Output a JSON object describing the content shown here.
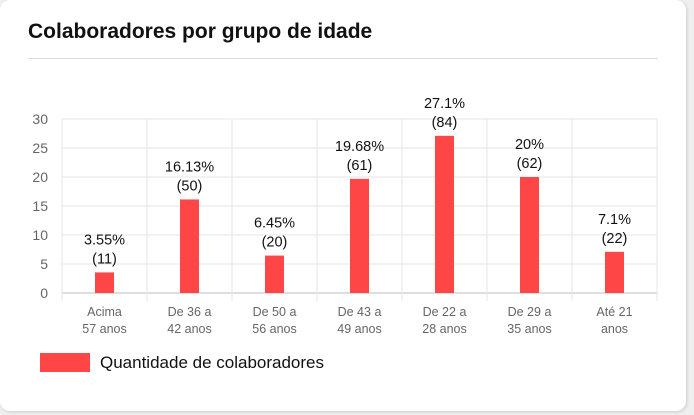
{
  "card": {
    "title": "Colaboradores por grupo de idade"
  },
  "chart_data": {
    "type": "bar",
    "title": "Colaboradores por grupo de idade",
    "xlabel": "",
    "ylabel": "",
    "ylim": [
      0,
      30
    ],
    "yticks": [
      0,
      5,
      10,
      15,
      20,
      25,
      30
    ],
    "grid": true,
    "legend_position": "bottom-left",
    "categories": [
      [
        "Acima",
        "57 anos"
      ],
      [
        "De 36 a",
        "42 anos"
      ],
      [
        "De 50 a",
        "56 anos"
      ],
      [
        "De 43 a",
        "49 anos"
      ],
      [
        "De 22 a",
        "28 anos"
      ],
      [
        "De 29 a",
        "35 anos"
      ],
      [
        "Até 21",
        "anos"
      ]
    ],
    "series": [
      {
        "name": "Quantidade de colaboradores",
        "color": "#ff4646",
        "values": [
          3.55,
          16.13,
          6.45,
          19.68,
          27.1,
          20,
          7.1
        ],
        "labels": [
          [
            "3.55%",
            "(11)"
          ],
          [
            "16.13%",
            "(50)"
          ],
          [
            "6.45%",
            "(20)"
          ],
          [
            "19.68%",
            "(61)"
          ],
          [
            "27.1%",
            "(84)"
          ],
          [
            "20%",
            "(62)"
          ],
          [
            "7.1%",
            "(22)"
          ]
        ]
      }
    ]
  }
}
